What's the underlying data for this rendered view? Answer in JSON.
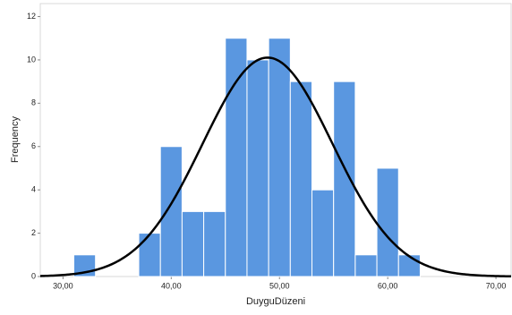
{
  "chart_data": {
    "type": "histogram",
    "x_label": "DuyguDüzeni",
    "y_label": "Frequency",
    "bins": [
      31,
      33,
      35,
      37,
      39,
      41,
      43,
      45,
      47,
      49,
      51,
      53,
      55,
      57,
      59,
      61,
      63
    ],
    "values": [
      1,
      0,
      0,
      2,
      6,
      3,
      3,
      11,
      10,
      11,
      9,
      4,
      9,
      1,
      5,
      1
    ],
    "color": "#5a97e0",
    "normal_curve": {
      "mean": 48.9,
      "sd": 6.0,
      "color": "#000000"
    },
    "xlim": [
      27.9,
      71.4
    ],
    "xticks": [
      {
        "value": 30,
        "label": "30,00"
      },
      {
        "value": 40,
        "label": "40,00"
      },
      {
        "value": 50,
        "label": "50,00"
      },
      {
        "value": 60,
        "label": "60,00"
      },
      {
        "value": 70,
        "label": "70,00"
      }
    ],
    "ylim": [
      0,
      12.6
    ],
    "yticks": [
      0,
      2,
      4,
      6,
      8,
      10,
      12
    ]
  }
}
